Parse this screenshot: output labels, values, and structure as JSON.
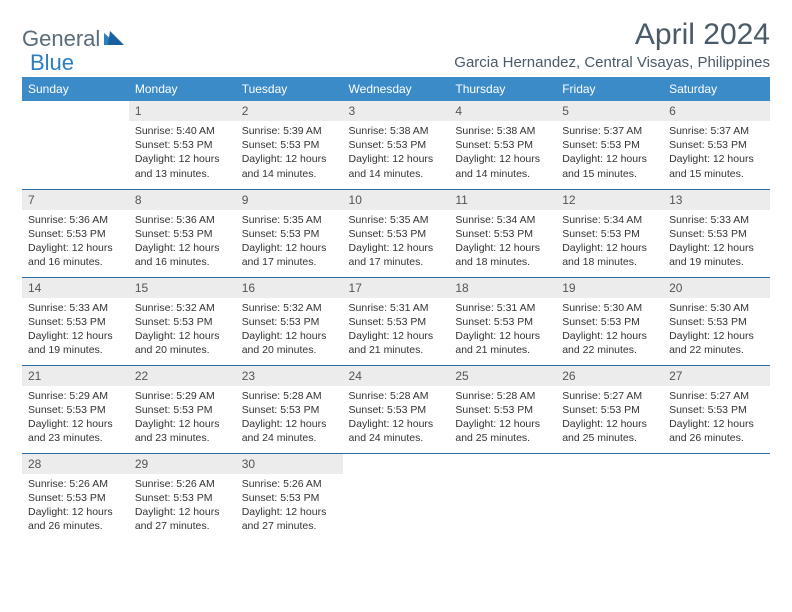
{
  "brand": {
    "part1": "General",
    "part2": "Blue"
  },
  "title": "April 2024",
  "location": "Garcia Hernandez, Central Visayas, Philippines",
  "colors": {
    "header_bg": "#3b8bc9",
    "header_text": "#ffffff",
    "daynum_bg": "#ececec",
    "row_border": "#2b6fa3",
    "title_color": "#4a5a68",
    "logo_gray": "#5a6b7a",
    "logo_blue": "#2b7ec1"
  },
  "weekdays": [
    "Sunday",
    "Monday",
    "Tuesday",
    "Wednesday",
    "Thursday",
    "Friday",
    "Saturday"
  ],
  "weeks": [
    [
      null,
      {
        "n": "1",
        "sr": "5:40 AM",
        "ss": "5:53 PM",
        "dl": "12 hours and 13 minutes."
      },
      {
        "n": "2",
        "sr": "5:39 AM",
        "ss": "5:53 PM",
        "dl": "12 hours and 14 minutes."
      },
      {
        "n": "3",
        "sr": "5:38 AM",
        "ss": "5:53 PM",
        "dl": "12 hours and 14 minutes."
      },
      {
        "n": "4",
        "sr": "5:38 AM",
        "ss": "5:53 PM",
        "dl": "12 hours and 14 minutes."
      },
      {
        "n": "5",
        "sr": "5:37 AM",
        "ss": "5:53 PM",
        "dl": "12 hours and 15 minutes."
      },
      {
        "n": "6",
        "sr": "5:37 AM",
        "ss": "5:53 PM",
        "dl": "12 hours and 15 minutes."
      }
    ],
    [
      {
        "n": "7",
        "sr": "5:36 AM",
        "ss": "5:53 PM",
        "dl": "12 hours and 16 minutes."
      },
      {
        "n": "8",
        "sr": "5:36 AM",
        "ss": "5:53 PM",
        "dl": "12 hours and 16 minutes."
      },
      {
        "n": "9",
        "sr": "5:35 AM",
        "ss": "5:53 PM",
        "dl": "12 hours and 17 minutes."
      },
      {
        "n": "10",
        "sr": "5:35 AM",
        "ss": "5:53 PM",
        "dl": "12 hours and 17 minutes."
      },
      {
        "n": "11",
        "sr": "5:34 AM",
        "ss": "5:53 PM",
        "dl": "12 hours and 18 minutes."
      },
      {
        "n": "12",
        "sr": "5:34 AM",
        "ss": "5:53 PM",
        "dl": "12 hours and 18 minutes."
      },
      {
        "n": "13",
        "sr": "5:33 AM",
        "ss": "5:53 PM",
        "dl": "12 hours and 19 minutes."
      }
    ],
    [
      {
        "n": "14",
        "sr": "5:33 AM",
        "ss": "5:53 PM",
        "dl": "12 hours and 19 minutes."
      },
      {
        "n": "15",
        "sr": "5:32 AM",
        "ss": "5:53 PM",
        "dl": "12 hours and 20 minutes."
      },
      {
        "n": "16",
        "sr": "5:32 AM",
        "ss": "5:53 PM",
        "dl": "12 hours and 20 minutes."
      },
      {
        "n": "17",
        "sr": "5:31 AM",
        "ss": "5:53 PM",
        "dl": "12 hours and 21 minutes."
      },
      {
        "n": "18",
        "sr": "5:31 AM",
        "ss": "5:53 PM",
        "dl": "12 hours and 21 minutes."
      },
      {
        "n": "19",
        "sr": "5:30 AM",
        "ss": "5:53 PM",
        "dl": "12 hours and 22 minutes."
      },
      {
        "n": "20",
        "sr": "5:30 AM",
        "ss": "5:53 PM",
        "dl": "12 hours and 22 minutes."
      }
    ],
    [
      {
        "n": "21",
        "sr": "5:29 AM",
        "ss": "5:53 PM",
        "dl": "12 hours and 23 minutes."
      },
      {
        "n": "22",
        "sr": "5:29 AM",
        "ss": "5:53 PM",
        "dl": "12 hours and 23 minutes."
      },
      {
        "n": "23",
        "sr": "5:28 AM",
        "ss": "5:53 PM",
        "dl": "12 hours and 24 minutes."
      },
      {
        "n": "24",
        "sr": "5:28 AM",
        "ss": "5:53 PM",
        "dl": "12 hours and 24 minutes."
      },
      {
        "n": "25",
        "sr": "5:28 AM",
        "ss": "5:53 PM",
        "dl": "12 hours and 25 minutes."
      },
      {
        "n": "26",
        "sr": "5:27 AM",
        "ss": "5:53 PM",
        "dl": "12 hours and 25 minutes."
      },
      {
        "n": "27",
        "sr": "5:27 AM",
        "ss": "5:53 PM",
        "dl": "12 hours and 26 minutes."
      }
    ],
    [
      {
        "n": "28",
        "sr": "5:26 AM",
        "ss": "5:53 PM",
        "dl": "12 hours and 26 minutes."
      },
      {
        "n": "29",
        "sr": "5:26 AM",
        "ss": "5:53 PM",
        "dl": "12 hours and 27 minutes."
      },
      {
        "n": "30",
        "sr": "5:26 AM",
        "ss": "5:53 PM",
        "dl": "12 hours and 27 minutes."
      },
      null,
      null,
      null,
      null
    ]
  ],
  "labels": {
    "sunrise": "Sunrise:",
    "sunset": "Sunset:",
    "daylight": "Daylight:"
  }
}
